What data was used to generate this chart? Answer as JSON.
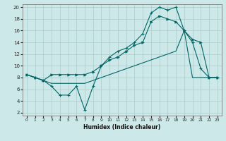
{
  "xlabel": "Humidex (Indice chaleur)",
  "bg_color": "#cde8e8",
  "grid_color": "#aacccc",
  "line_color": "#006666",
  "xlim": [
    -0.5,
    23.5
  ],
  "ylim": [
    1.5,
    20.5
  ],
  "yticks": [
    2,
    4,
    6,
    8,
    10,
    12,
    14,
    16,
    18,
    20
  ],
  "xticks": [
    0,
    1,
    2,
    3,
    4,
    5,
    6,
    7,
    8,
    9,
    10,
    11,
    12,
    13,
    14,
    15,
    16,
    17,
    18,
    19,
    20,
    21,
    22,
    23
  ],
  "line1_x": [
    0,
    1,
    2,
    3,
    4,
    5,
    6,
    7,
    8,
    9,
    10,
    11,
    12,
    13,
    14,
    15,
    16,
    17,
    18,
    19,
    20,
    21,
    22,
    23
  ],
  "line1_y": [
    8.5,
    8.0,
    7.5,
    6.5,
    5.0,
    5.0,
    6.5,
    2.5,
    6.5,
    10.0,
    11.5,
    12.5,
    13.0,
    14.0,
    15.5,
    19.0,
    20.0,
    19.5,
    20.0,
    16.0,
    14.0,
    9.5,
    8.0,
    8.0
  ],
  "line2_x": [
    0,
    1,
    2,
    3,
    4,
    5,
    6,
    7,
    8,
    9,
    10,
    11,
    12,
    13,
    14,
    15,
    16,
    17,
    18,
    19,
    20,
    21,
    22,
    23
  ],
  "line2_y": [
    8.5,
    8.0,
    7.5,
    8.5,
    8.5,
    8.5,
    8.5,
    8.5,
    9.0,
    10.0,
    11.0,
    11.5,
    12.5,
    13.5,
    14.0,
    17.5,
    18.5,
    18.0,
    17.5,
    16.0,
    14.5,
    14.0,
    8.0,
    8.0
  ],
  "line3_x": [
    0,
    1,
    2,
    3,
    4,
    5,
    6,
    7,
    8,
    9,
    10,
    11,
    12,
    13,
    14,
    15,
    16,
    17,
    18,
    19,
    20,
    21,
    22,
    23
  ],
  "line3_y": [
    8.5,
    8.0,
    7.5,
    7.0,
    7.0,
    7.0,
    7.0,
    7.0,
    7.5,
    8.0,
    8.5,
    9.0,
    9.5,
    10.0,
    10.5,
    11.0,
    11.5,
    12.0,
    12.5,
    16.0,
    8.0,
    8.0,
    8.0,
    8.0
  ]
}
